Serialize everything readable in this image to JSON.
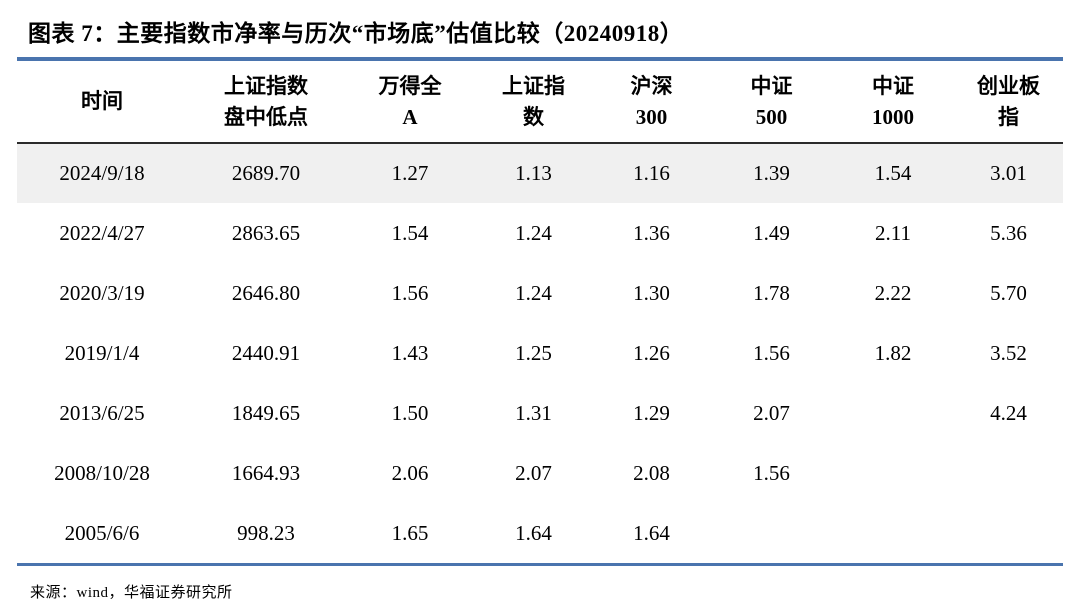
{
  "title": "图表 7：主要指数市净率与历次“市场底”估值比较（20240918）",
  "colors": {
    "accent_blue": "#4a74ae",
    "header_rule": "#2b2b2b",
    "highlight_row": "#f0f0f0",
    "text": "#000000",
    "background": "#ffffff"
  },
  "header_display": {
    "columns": [
      {
        "line1": "时间",
        "line2": ""
      },
      {
        "line1": "上证指数",
        "line2": "盘中低点"
      },
      {
        "line1": "万得全",
        "line2": "A"
      },
      {
        "line1": "上证指",
        "line2": "数"
      },
      {
        "line1": "沪深",
        "line2": "300"
      },
      {
        "line1": "中证",
        "line2": "500"
      },
      {
        "line1": "中证",
        "line2": "1000"
      },
      {
        "line1": "创业板",
        "line2": "指"
      }
    ]
  },
  "table_style": {
    "highlight_row_index": 0
  },
  "chart_data": {
    "type": "table",
    "title": "图表 7：主要指数市净率与历次“市场底”估值比较（20240918）",
    "columns": [
      "时间",
      "上证指数盘中低点",
      "万得全A",
      "上证指数",
      "沪深300",
      "中证500",
      "中证1000",
      "创业板指"
    ],
    "rows": [
      [
        "2024/9/18",
        "2689.70",
        "1.27",
        "1.13",
        "1.16",
        "1.39",
        "1.54",
        "3.01"
      ],
      [
        "2022/4/27",
        "2863.65",
        "1.54",
        "1.24",
        "1.36",
        "1.49",
        "2.11",
        "5.36"
      ],
      [
        "2020/3/19",
        "2646.80",
        "1.56",
        "1.24",
        "1.30",
        "1.78",
        "2.22",
        "5.70"
      ],
      [
        "2019/1/4",
        "2440.91",
        "1.43",
        "1.25",
        "1.26",
        "1.56",
        "1.82",
        "3.52"
      ],
      [
        "2013/6/25",
        "1849.65",
        "1.50",
        "1.31",
        "1.29",
        "2.07",
        "",
        "4.24"
      ],
      [
        "2008/10/28",
        "1664.93",
        "2.06",
        "2.07",
        "2.08",
        "1.56",
        "",
        ""
      ],
      [
        "2005/6/6",
        "998.23",
        "1.65",
        "1.64",
        "1.64",
        "",
        "",
        ""
      ]
    ]
  },
  "source": "来源：wind，华福证券研究所"
}
